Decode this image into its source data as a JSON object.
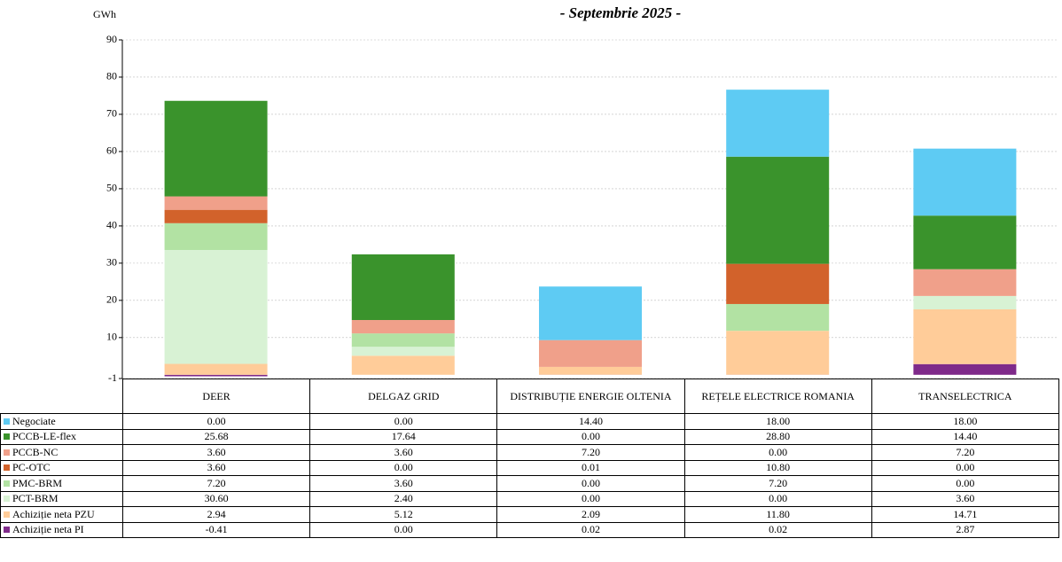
{
  "chart_data": {
    "type": "stacked_bar",
    "subtitle": "- Septembrie 2025 -",
    "y_label": "GWh",
    "categories": [
      "DEER",
      "DELGAZ GRID",
      "DISTRIBUȚIE ENERGIE OLTENIA",
      "REȚELE ELECTRICE ROMANIA",
      "TRANSELECTRICA"
    ],
    "ylim": [
      -1,
      90
    ],
    "yticks": [
      -1,
      10,
      20,
      30,
      40,
      50,
      60,
      70,
      80,
      90
    ],
    "grid": true,
    "series": [
      {
        "name": "Negociate",
        "color": "#5ecbf3",
        "values": [
          0,
          0,
          14.4,
          18,
          18
        ],
        "value_labels": [
          "0.00",
          "0.00",
          "14.40",
          "18.00",
          "18.00"
        ]
      },
      {
        "name": "PCCB-LE-flex",
        "color": "#3a932c",
        "values": [
          25.68,
          17.64,
          0,
          28.8,
          14.4
        ],
        "value_labels": [
          "25.68",
          "17.64",
          "0.00",
          "28.80",
          "14.40"
        ]
      },
      {
        "name": "PCCB-NC",
        "color": "#f0a08a",
        "values": [
          3.6,
          3.6,
          7.2,
          0,
          7.2
        ],
        "value_labels": [
          "3.60",
          "3.60",
          "7.20",
          "0.00",
          "7.20"
        ]
      },
      {
        "name": "PC-OTC",
        "color": "#d2622b",
        "values": [
          3.6,
          0,
          0.01,
          10.8,
          0
        ],
        "value_labels": [
          "3.60",
          "0.00",
          "0.01",
          "10.80",
          "0.00"
        ]
      },
      {
        "name": "PMC-BRM",
        "color": "#b2e2a3",
        "values": [
          7.2,
          3.6,
          0,
          7.2,
          0
        ],
        "value_labels": [
          "7.20",
          "3.60",
          "0.00",
          "7.20",
          "0.00"
        ]
      },
      {
        "name": "PCT-BRM",
        "color": "#d8f2d4",
        "values": [
          30.6,
          2.4,
          0,
          0,
          3.6
        ],
        "value_labels": [
          "30.60",
          "2.40",
          "0.00",
          "0.00",
          "3.60"
        ]
      },
      {
        "name": "Achiziție neta PZU",
        "color": "#ffcc99",
        "values": [
          2.94,
          5.12,
          2.09,
          11.8,
          14.71
        ],
        "value_labels": [
          "2.94",
          "5.12",
          "2.09",
          "11.80",
          "14.71"
        ]
      },
      {
        "name": "Achiziție neta PI",
        "color": "#7f2a8a",
        "values": [
          -0.41,
          0,
          0.02,
          0.02,
          2.87
        ],
        "value_labels": [
          "-0.41",
          "0.00",
          "0.02",
          "0.02",
          "2.87"
        ]
      }
    ]
  }
}
